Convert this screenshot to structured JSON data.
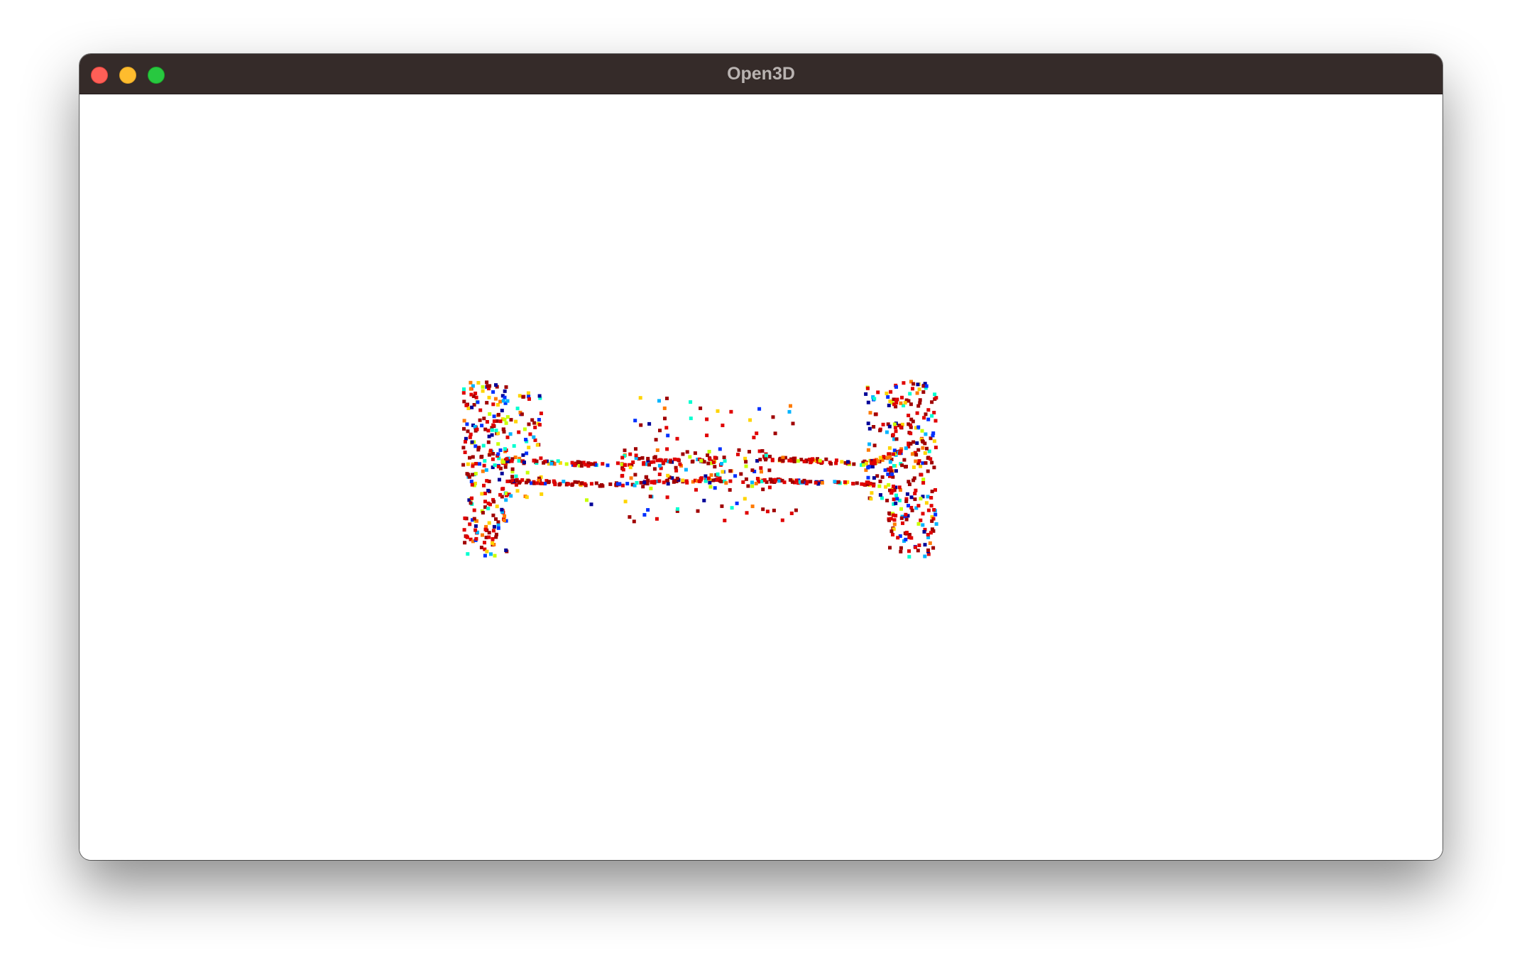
{
  "window": {
    "title": "Open3D",
    "controls": {
      "close": "close-button",
      "minimize": "minimize-button",
      "zoom": "zoom-button"
    }
  },
  "viewport": {
    "background": "#ffffff",
    "content": "point-cloud",
    "colormap": [
      "#a00000",
      "#e00000",
      "#ff7a00",
      "#ffd400",
      "#c8ff00",
      "#00ffd0",
      "#00b4ff",
      "#0030ff",
      "#000098"
    ]
  }
}
